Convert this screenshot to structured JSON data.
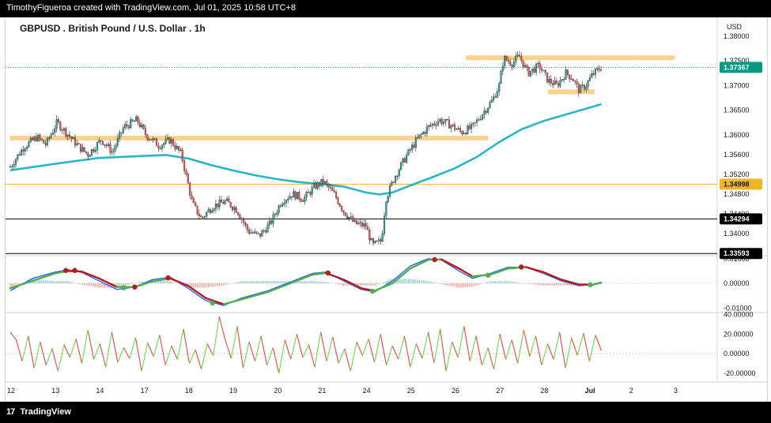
{
  "header": {
    "attribution": "TimothyFigueroa created with TradingView.com, Jul 01, 2025 10:58 UTC+8"
  },
  "footer": {
    "logo_text": "TradingView",
    "logo_mark": "17"
  },
  "chart_data": {
    "type": "candlestick",
    "title": "GBPUSD . British Pound / U.S. Dollar . 1h",
    "currency": "USD",
    "main_pane": {
      "y_ticks": [
        "1.38000",
        "1.37500",
        "1.37000",
        "1.36500",
        "1.36000",
        "1.35600",
        "1.35200",
        "1.34800",
        "1.34400",
        "1.34000"
      ],
      "ylim": [
        1.3358,
        1.3822
      ],
      "last_price": {
        "value": 1.37367,
        "label": "1.37367",
        "color": "#089981"
      },
      "price_lines": [
        {
          "value": 1.34998,
          "label": "1.34998",
          "color": "#f0b429"
        },
        {
          "value": 1.34294,
          "label": "1.34294",
          "color": "#000000"
        },
        {
          "value": 1.33593,
          "label": "1.33593",
          "color": "#000000"
        }
      ],
      "zones": [
        {
          "value": 1.3593,
          "from_day": 0,
          "to_day": 10.75,
          "color": "#ffd18c"
        },
        {
          "value": 1.3756,
          "from_day": 10.25,
          "to_day": 14.95,
          "color": "#ffd18c"
        },
        {
          "value": 1.3687,
          "from_day": 12.1,
          "to_day": 13.15,
          "color": "#ffd18c"
        }
      ],
      "moving_average": {
        "color": "#26b6c6",
        "points": [
          [
            0,
            1.3528
          ],
          [
            1,
            1.3541
          ],
          [
            2,
            1.3553
          ],
          [
            3,
            1.3557
          ],
          [
            3.5,
            1.3559
          ],
          [
            4,
            1.3552
          ],
          [
            4.5,
            1.3539
          ],
          [
            5,
            1.3528
          ],
          [
            5.5,
            1.3518
          ],
          [
            6,
            1.351
          ],
          [
            6.5,
            1.3504
          ],
          [
            7,
            1.35
          ],
          [
            7.5,
            1.3495
          ],
          [
            8,
            1.3483
          ],
          [
            8.3,
            1.3479
          ],
          [
            8.6,
            1.3483
          ],
          [
            9,
            1.3497
          ],
          [
            9.5,
            1.3514
          ],
          [
            10,
            1.3532
          ],
          [
            10.5,
            1.3555
          ],
          [
            11,
            1.3585
          ],
          [
            11.5,
            1.3611
          ],
          [
            12,
            1.3628
          ],
          [
            12.5,
            1.3641
          ],
          [
            13,
            1.3654
          ],
          [
            13.3,
            1.3662
          ]
        ]
      },
      "price_path": [
        [
          0,
          1.3535
        ],
        [
          0.3,
          1.3575
        ],
        [
          0.6,
          1.3595
        ],
        [
          0.8,
          1.358
        ],
        [
          1.05,
          1.3625
        ],
        [
          1.3,
          1.36
        ],
        [
          1.55,
          1.3575
        ],
        [
          1.75,
          1.356
        ],
        [
          2.05,
          1.359
        ],
        [
          2.3,
          1.3565
        ],
        [
          2.55,
          1.3615
        ],
        [
          2.85,
          1.363
        ],
        [
          3.05,
          1.36
        ],
        [
          3.35,
          1.3578
        ],
        [
          3.6,
          1.359
        ],
        [
          3.85,
          1.356
        ],
        [
          4.1,
          1.346
        ],
        [
          4.3,
          1.343
        ],
        [
          4.55,
          1.3455
        ],
        [
          4.85,
          1.3465
        ],
        [
          5.1,
          1.3448
        ],
        [
          5.35,
          1.3405
        ],
        [
          5.6,
          1.3395
        ],
        [
          5.85,
          1.342
        ],
        [
          6.1,
          1.3465
        ],
        [
          6.35,
          1.348
        ],
        [
          6.6,
          1.347
        ],
        [
          6.85,
          1.3495
        ],
        [
          7.05,
          1.3505
        ],
        [
          7.3,
          1.3478
        ],
        [
          7.5,
          1.3445
        ],
        [
          7.75,
          1.342
        ],
        [
          8.0,
          1.3415
        ],
        [
          8.15,
          1.3375
        ],
        [
          8.35,
          1.3385
        ],
        [
          8.45,
          1.347
        ],
        [
          8.65,
          1.3515
        ],
        [
          8.9,
          1.3555
        ],
        [
          9.15,
          1.359
        ],
        [
          9.4,
          1.3615
        ],
        [
          9.65,
          1.363
        ],
        [
          9.9,
          1.362
        ],
        [
          10.15,
          1.3605
        ],
        [
          10.4,
          1.3615
        ],
        [
          10.6,
          1.364
        ],
        [
          10.85,
          1.367
        ],
        [
          11.0,
          1.37
        ],
        [
          11.1,
          1.3755
        ],
        [
          11.3,
          1.3745
        ],
        [
          11.45,
          1.376
        ],
        [
          11.65,
          1.3725
        ],
        [
          11.9,
          1.374
        ],
        [
          12.1,
          1.371
        ],
        [
          12.3,
          1.37
        ],
        [
          12.5,
          1.3725
        ],
        [
          12.65,
          1.3715
        ],
        [
          12.8,
          1.369
        ],
        [
          12.95,
          1.37
        ],
        [
          13.1,
          1.3722
        ],
        [
          13.3,
          1.3737
        ]
      ]
    },
    "macd_pane": {
      "y_ticks": [
        "0.01000",
        "0.00000",
        "-0.01000"
      ],
      "ylim": [
        -0.0112,
        0.0112
      ],
      "line_color": "#2962ff",
      "signal_color_up": "#4caf50",
      "signal_color_down": "#b71c1c",
      "macd": [
        [
          0,
          -0.003
        ],
        [
          0.5,
          0.002
        ],
        [
          1.0,
          0.0045
        ],
        [
          1.3,
          0.0055
        ],
        [
          1.6,
          0.0045
        ],
        [
          2.0,
          0.001
        ],
        [
          2.4,
          -0.0025
        ],
        [
          2.8,
          -0.0015
        ],
        [
          3.2,
          0.0015
        ],
        [
          3.6,
          0.0025
        ],
        [
          4.0,
          -0.002
        ],
        [
          4.4,
          -0.007
        ],
        [
          4.8,
          -0.009
        ],
        [
          5.2,
          -0.006
        ],
        [
          5.8,
          -0.003
        ],
        [
          6.3,
          0.0005
        ],
        [
          6.8,
          0.004
        ],
        [
          7.1,
          0.0045
        ],
        [
          7.5,
          0.001
        ],
        [
          7.9,
          -0.0025
        ],
        [
          8.2,
          -0.0035
        ],
        [
          8.6,
          0.001
        ],
        [
          9.0,
          0.007
        ],
        [
          9.4,
          0.01
        ],
        [
          9.7,
          0.0095
        ],
        [
          10.1,
          0.005
        ],
        [
          10.4,
          0.002
        ],
        [
          10.8,
          0.004
        ],
        [
          11.2,
          0.0065
        ],
        [
          11.6,
          0.0065
        ],
        [
          12.0,
          0.004
        ],
        [
          12.4,
          0.001
        ],
        [
          12.8,
          -0.001
        ],
        [
          13.1,
          -0.0005
        ],
        [
          13.3,
          0.0005
        ]
      ],
      "signal": [
        [
          0,
          -0.002
        ],
        [
          0.5,
          0.001
        ],
        [
          1.0,
          0.004
        ],
        [
          1.3,
          0.005
        ],
        [
          1.6,
          0.0048
        ],
        [
          2.0,
          0.002
        ],
        [
          2.4,
          -0.0015
        ],
        [
          2.8,
          -0.0015
        ],
        [
          3.2,
          0.0008
        ],
        [
          3.6,
          0.002
        ],
        [
          4.0,
          -0.001
        ],
        [
          4.4,
          -0.006
        ],
        [
          4.8,
          -0.0085
        ],
        [
          5.2,
          -0.0065
        ],
        [
          5.8,
          -0.0035
        ],
        [
          6.3,
          0.0
        ],
        [
          6.8,
          0.0035
        ],
        [
          7.1,
          0.0042
        ],
        [
          7.5,
          0.0015
        ],
        [
          7.9,
          -0.002
        ],
        [
          8.2,
          -0.003
        ],
        [
          8.6,
          0.0
        ],
        [
          9.0,
          0.006
        ],
        [
          9.4,
          0.0095
        ],
        [
          9.7,
          0.0097
        ],
        [
          10.1,
          0.006
        ],
        [
          10.4,
          0.0028
        ],
        [
          10.8,
          0.0035
        ],
        [
          11.2,
          0.006
        ],
        [
          11.6,
          0.0066
        ],
        [
          12.0,
          0.0045
        ],
        [
          12.4,
          0.0015
        ],
        [
          12.8,
          -0.0005
        ],
        [
          13.1,
          -0.0006
        ],
        [
          13.3,
          0.0002
        ]
      ],
      "crosses": [
        {
          "day": 1.25,
          "value": 0.0052,
          "type": "bearish"
        },
        {
          "day": 1.45,
          "value": 0.0052,
          "type": "bearish"
        },
        {
          "day": 2.55,
          "value": -0.0018,
          "type": "bullish"
        },
        {
          "day": 2.8,
          "value": -0.0015,
          "type": "bearish"
        },
        {
          "day": 3.55,
          "value": 0.0022,
          "type": "bearish"
        },
        {
          "day": 4.55,
          "value": -0.008,
          "type": "bullish"
        },
        {
          "day": 7.15,
          "value": 0.0042,
          "type": "bearish"
        },
        {
          "day": 8.15,
          "value": -0.0032,
          "type": "bullish"
        },
        {
          "day": 9.55,
          "value": 0.0096,
          "type": "bearish"
        },
        {
          "day": 10.75,
          "value": 0.0033,
          "type": "bullish"
        },
        {
          "day": 11.5,
          "value": 0.0066,
          "type": "bearish"
        },
        {
          "day": 13.05,
          "value": -0.0006,
          "type": "bullish"
        }
      ]
    },
    "osc_pane": {
      "y_ticks": [
        "40.00000",
        "20.00000",
        "0.00000",
        "-20.00000"
      ],
      "ylim": [
        -29,
        42
      ],
      "up_color": "#66dd44",
      "down_color": "#ee4444",
      "values": [
        22,
        14,
        -8,
        18,
        -15,
        12,
        -12,
        5,
        -18,
        9,
        -4,
        15,
        -10,
        24,
        -6,
        10,
        -14,
        22,
        -9,
        6,
        -5,
        16,
        -18,
        11,
        -3,
        19,
        -12,
        8,
        -6,
        25,
        -10,
        4,
        -16,
        10,
        -2,
        38,
        14,
        -5,
        28,
        -15,
        12,
        -8,
        18,
        -12,
        6,
        -20,
        14,
        -6,
        20,
        -4,
        9,
        -14,
        22,
        -8,
        17,
        -10,
        5,
        -18,
        12,
        -2,
        15,
        -9,
        20,
        -12,
        8,
        -6,
        18,
        -14,
        10,
        -5,
        22,
        -10,
        25,
        -18,
        12,
        -4,
        28,
        -8,
        18,
        -12,
        6,
        -16,
        20,
        -6,
        14,
        -10,
        24,
        -3,
        18,
        -12,
        10,
        -6,
        22,
        -15,
        16,
        -2,
        21,
        -8,
        19,
        3
      ]
    },
    "x_axis": {
      "ticks": [
        {
          "label": "12",
          "day": 0
        },
        {
          "label": "13",
          "day": 1
        },
        {
          "label": "14",
          "day": 2
        },
        {
          "label": "17",
          "day": 3
        },
        {
          "label": "18",
          "day": 4
        },
        {
          "label": "19",
          "day": 5
        },
        {
          "label": "20",
          "day": 6
        },
        {
          "label": "21",
          "day": 7
        },
        {
          "label": "24",
          "day": 8
        },
        {
          "label": "25",
          "day": 9
        },
        {
          "label": "26",
          "day": 10
        },
        {
          "label": "27",
          "day": 11
        },
        {
          "label": "28",
          "day": 12
        },
        {
          "label": "Jul",
          "day": 13
        },
        {
          "label": "2",
          "day": 14
        },
        {
          "label": "3",
          "day": 15
        }
      ]
    }
  }
}
